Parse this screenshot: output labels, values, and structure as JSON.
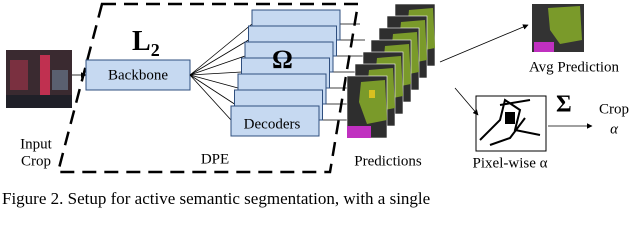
{
  "figure": {
    "input_label": [
      "Input",
      "Crop"
    ],
    "loss": {
      "symbol": "L",
      "subscript": "2"
    },
    "omega": "Ω",
    "backbone": "Backbone",
    "decoders": "Decoders",
    "dpe": "DPE",
    "predictions": "Predictions",
    "avg_prediction": "Avg Prediction",
    "sigma": "Σ",
    "pixel_wise": "Pixel-wise α",
    "output_label": [
      "Crop",
      "α"
    ]
  },
  "caption": "Figure 2. Setup for active semantic segmentation, with a single"
}
